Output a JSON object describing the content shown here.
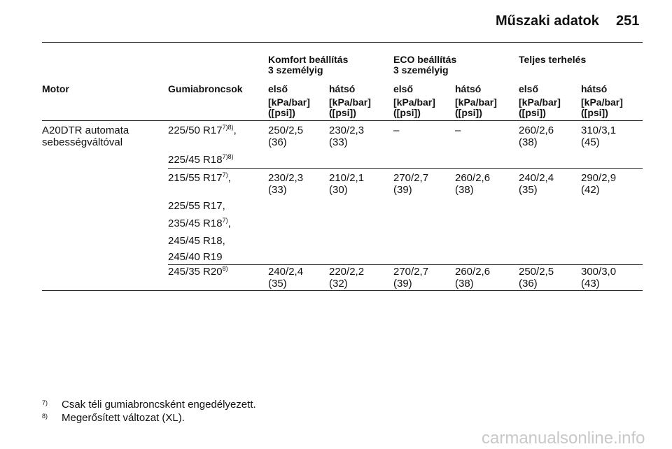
{
  "header": {
    "title": "Műszaki adatok",
    "page": "251"
  },
  "table": {
    "groups": [
      {
        "line1": "Komfort beállítás",
        "line2": "3 személyig"
      },
      {
        "line1": "ECO beállítás",
        "line2": "3 személyig"
      },
      {
        "line1": "Teljes terhelés"
      }
    ],
    "columns": [
      "Motor",
      "Gumiabroncsok",
      "első",
      "hátsó",
      "első",
      "hátsó",
      "első",
      "hátsó"
    ],
    "units": [
      [
        "[kPa/bar]",
        "([psi])"
      ],
      [
        "[kPa/bar]",
        "([psi])"
      ],
      [
        "[kPa/bar]",
        "([psi])"
      ],
      [
        "[kPa/bar]",
        "([psi])"
      ],
      [
        "[kPa/bar]",
        "([psi])"
      ],
      [
        "[kPa/bar]",
        "([psi])"
      ]
    ],
    "rows": [
      {
        "motor": [
          "A20DTR automata",
          "sebességváltóval"
        ],
        "tires": [
          {
            "text": "225/50 R17",
            "sup": "7)8)",
            "suffix": ","
          },
          {
            "text": "225/45 R18",
            "sup": "7)8)"
          }
        ],
        "values": [
          [
            "250/2,5",
            "(36)"
          ],
          [
            "230/2,3",
            "(33)"
          ],
          [
            "–"
          ],
          [
            "–"
          ],
          [
            "260/2,6",
            "(38)"
          ],
          [
            "310/3,1",
            "(45)"
          ]
        ]
      },
      {
        "tires": [
          {
            "text": "215/55 R17",
            "sup": "7)",
            "suffix": ","
          },
          {
            "text": "225/55 R17,"
          },
          {
            "text": "235/45 R18",
            "sup": "7)",
            "suffix": ","
          },
          {
            "text": "245/45 R18,"
          },
          {
            "text": "245/40 R19"
          }
        ],
        "values": [
          [
            "230/2,3",
            "(33)"
          ],
          [
            "210/2,1",
            "(30)"
          ],
          [
            "270/2,7",
            "(39)"
          ],
          [
            "260/2,6",
            "(38)"
          ],
          [
            "240/2,4",
            "(35)"
          ],
          [
            "290/2,9",
            "(42)"
          ]
        ]
      },
      {
        "tires": [
          {
            "text": "245/35 R20",
            "sup": "8)"
          }
        ],
        "values": [
          [
            "240/2,4",
            "(35)"
          ],
          [
            "220/2,2",
            "(32)"
          ],
          [
            "270/2,7",
            "(39)"
          ],
          [
            "260/2,6",
            "(38)"
          ],
          [
            "250/2,5",
            "(36)"
          ],
          [
            "300/3,0",
            "(43)"
          ]
        ]
      }
    ]
  },
  "footnotes": [
    {
      "mark": "7)",
      "text": "Csak téli gumiabroncsként engedélyezett."
    },
    {
      "mark": "8)",
      "text": "Megerősített változat (XL)."
    }
  ],
  "watermark": "carmanualsonline.info"
}
